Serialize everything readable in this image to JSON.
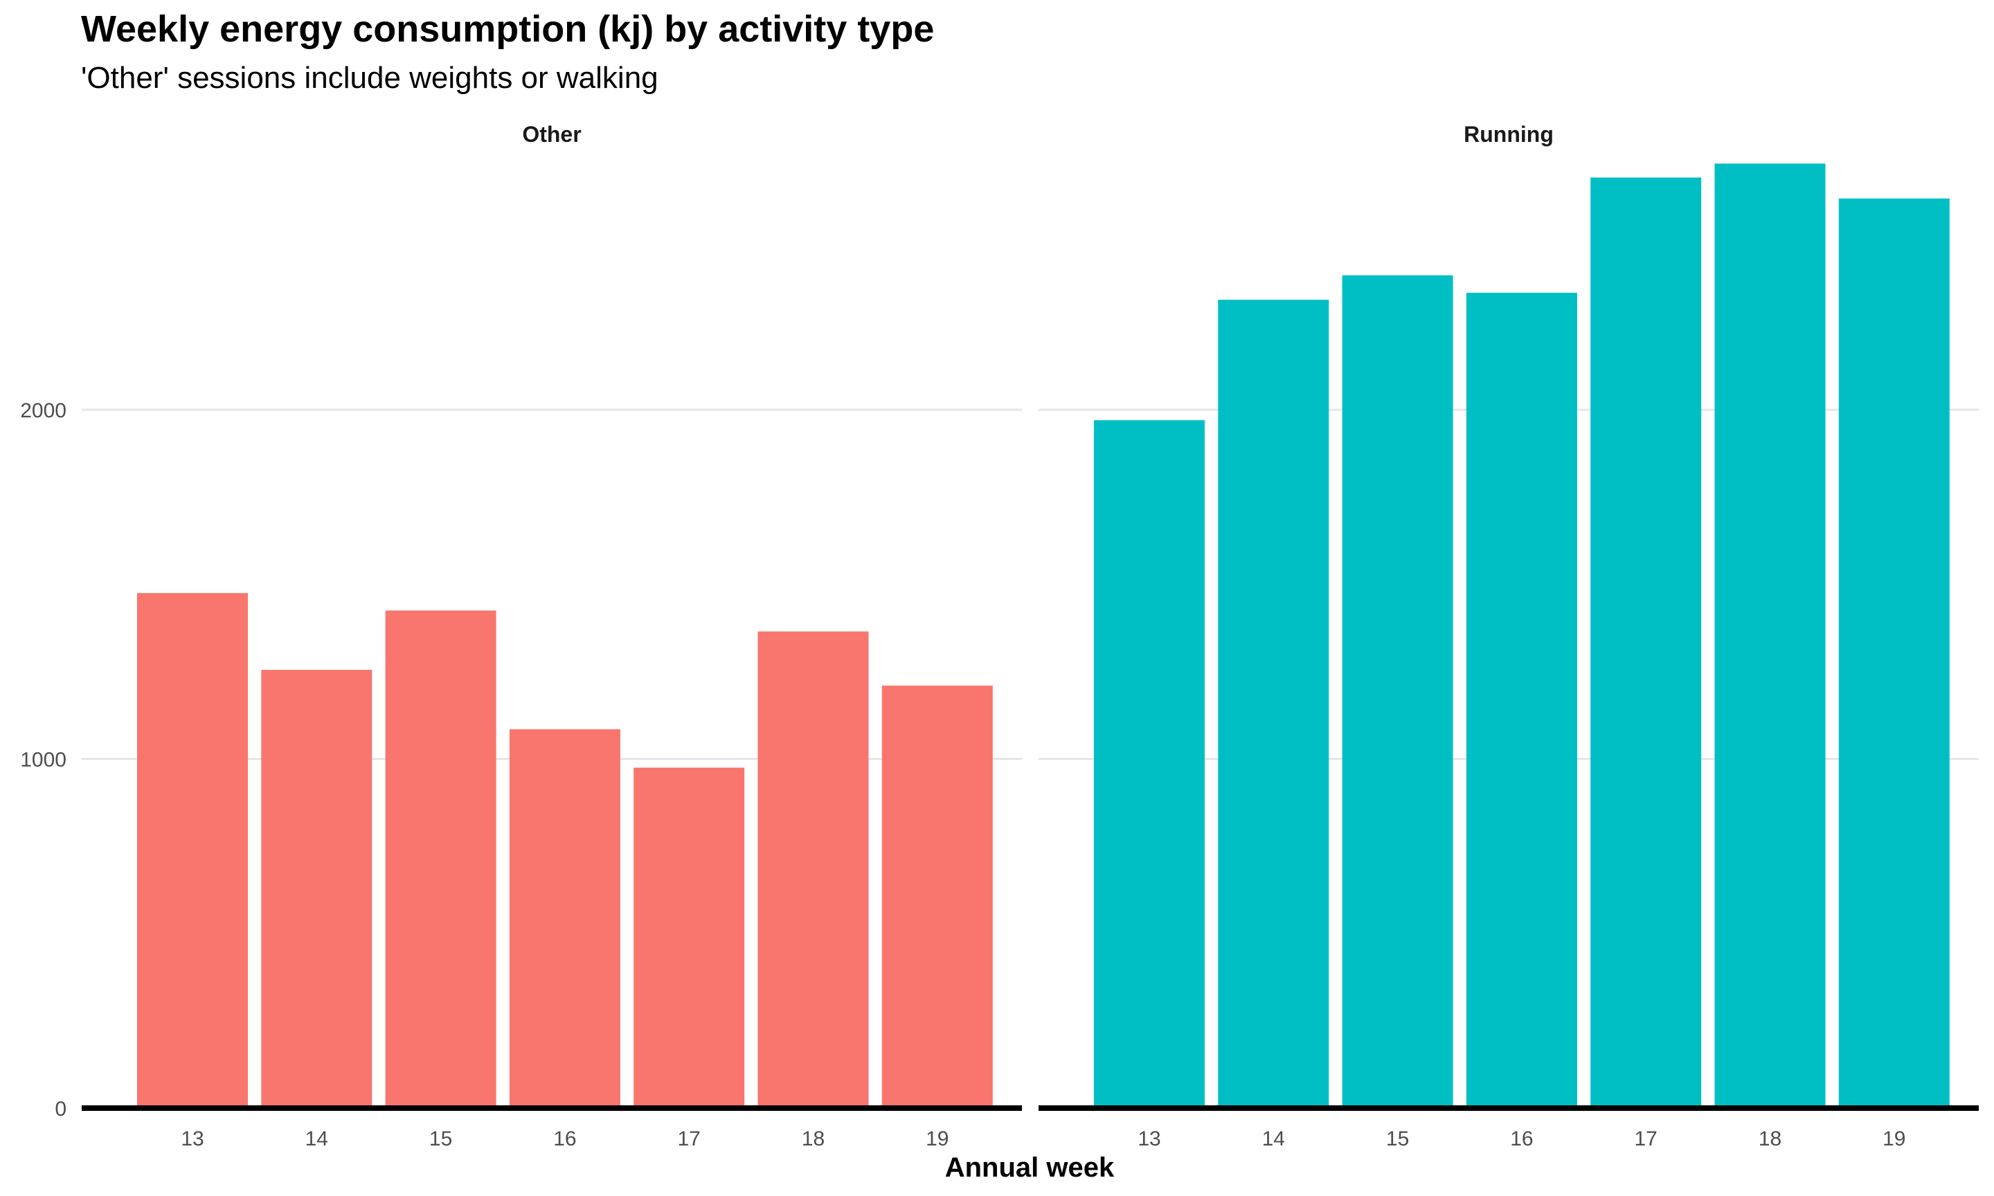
{
  "chart_data": {
    "type": "bar",
    "title": "Weekly energy consumption (kj) by activity type",
    "subtitle": "'Other' sessions include weights or walking",
    "xlabel": "Annual week",
    "ylabel": "",
    "ylim": [
      0,
      2800
    ],
    "yticks": [
      0,
      1000,
      2000
    ],
    "grid": true,
    "legend": "none",
    "categories": [
      "13",
      "14",
      "15",
      "16",
      "17",
      "18",
      "19"
    ],
    "facets": [
      {
        "label": "Other",
        "color": "#F8766D",
        "values": [
          1475,
          1255,
          1425,
          1085,
          975,
          1365,
          1210
        ]
      },
      {
        "label": "Running",
        "color": "#00BFC4",
        "values": [
          1970,
          2315,
          2385,
          2335,
          2665,
          2705,
          2605
        ]
      }
    ]
  }
}
